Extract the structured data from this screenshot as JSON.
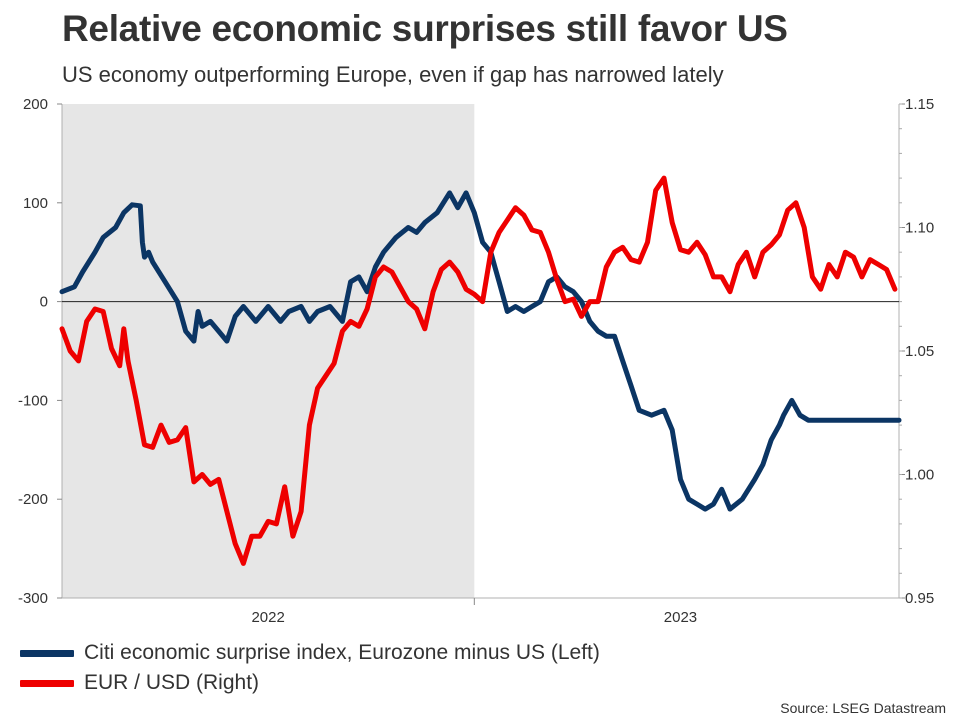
{
  "title": "Relative economic surprises still favor US",
  "subtitle": "US economy outperforming Europe, even if gap has narrowed lately",
  "source": "Source: LSEG Datastream",
  "chart_data": {
    "type": "line",
    "title": "Relative economic surprises still favor US",
    "subtitle": "US economy outperforming Europe, even if gap has narrowed lately",
    "x_periods": [
      {
        "label": "2022",
        "start": 0,
        "end": 1
      },
      {
        "label": "2023",
        "start": 1,
        "end": 2
      }
    ],
    "shaded_region": {
      "from": 0,
      "to": 1,
      "color": "#e6e6e6"
    },
    "x_range": [
      0,
      2.03
    ],
    "y_left": {
      "ticks": [
        "200",
        "100",
        "0",
        "-100",
        "-200",
        "-300"
      ],
      "ylim": [
        -300,
        200
      ]
    },
    "y_right": {
      "ticks": [
        "1.15",
        "1.10",
        "1.05",
        "1.00",
        "0.95"
      ],
      "ylim": [
        0.95,
        1.15
      ]
    },
    "zero_line": 0,
    "series": [
      {
        "name": "Citi economic surprise index, Eurozone minus US (Left)",
        "axis": "left",
        "color": "#0b3564",
        "x": [
          0.0,
          0.03,
          0.05,
          0.08,
          0.1,
          0.13,
          0.15,
          0.17,
          0.19,
          0.195,
          0.2,
          0.21,
          0.22,
          0.25,
          0.28,
          0.3,
          0.32,
          0.33,
          0.34,
          0.36,
          0.38,
          0.4,
          0.42,
          0.44,
          0.47,
          0.5,
          0.53,
          0.55,
          0.58,
          0.6,
          0.62,
          0.65,
          0.68,
          0.7,
          0.72,
          0.74,
          0.76,
          0.78,
          0.81,
          0.84,
          0.86,
          0.88,
          0.91,
          0.94,
          0.96,
          0.98,
          1.0,
          1.02,
          1.04,
          1.05,
          1.06,
          1.08,
          1.1,
          1.12,
          1.14,
          1.16,
          1.18,
          1.2,
          1.22,
          1.24,
          1.26,
          1.28,
          1.3,
          1.32,
          1.34,
          1.36,
          1.38,
          1.4,
          1.43,
          1.46,
          1.48,
          1.5,
          1.52,
          1.54,
          1.56,
          1.58,
          1.6,
          1.62,
          1.65,
          1.68,
          1.7,
          1.72,
          1.74,
          1.75,
          1.77,
          1.79,
          1.81,
          1.83,
          1.85,
          1.87,
          1.89,
          1.92,
          1.95,
          1.97,
          1.99,
          2.01,
          2.03
        ],
        "values": [
          10,
          15,
          30,
          50,
          65,
          75,
          90,
          98,
          97,
          60,
          45,
          50,
          40,
          20,
          0,
          -30,
          -40,
          -10,
          -25,
          -20,
          -30,
          -40,
          -15,
          -5,
          -20,
          -5,
          -20,
          -10,
          -5,
          -20,
          -10,
          -5,
          -20,
          20,
          25,
          10,
          35,
          50,
          65,
          75,
          70,
          80,
          90,
          110,
          95,
          110,
          90,
          60,
          50,
          35,
          20,
          -10,
          -5,
          -10,
          -5,
          0,
          20,
          25,
          15,
          10,
          0,
          -20,
          -30,
          -35,
          -35,
          -60,
          -85,
          -110,
          -115,
          -110,
          -130,
          -180,
          -200,
          -205,
          -210,
          -205,
          -190,
          -210,
          -200,
          -180,
          -165,
          -140,
          -125,
          -115,
          -100,
          -115,
          -120,
          -120,
          -120,
          -120,
          -120,
          -120,
          -120,
          -120,
          -120,
          -120,
          -120
        ],
        "note": "approximate values read from chart"
      },
      {
        "name": "EUR / USD (Right)",
        "axis": "right",
        "color": "#ee0000",
        "x": [
          0.0,
          0.02,
          0.04,
          0.06,
          0.08,
          0.1,
          0.12,
          0.14,
          0.15,
          0.16,
          0.18,
          0.2,
          0.22,
          0.24,
          0.26,
          0.28,
          0.3,
          0.32,
          0.34,
          0.36,
          0.38,
          0.4,
          0.42,
          0.44,
          0.46,
          0.48,
          0.5,
          0.52,
          0.54,
          0.56,
          0.58,
          0.6,
          0.62,
          0.64,
          0.66,
          0.68,
          0.7,
          0.72,
          0.74,
          0.76,
          0.78,
          0.8,
          0.82,
          0.84,
          0.86,
          0.88,
          0.9,
          0.92,
          0.94,
          0.96,
          0.98,
          1.0,
          1.02,
          1.04,
          1.06,
          1.08,
          1.1,
          1.12,
          1.14,
          1.16,
          1.18,
          1.2,
          1.22,
          1.24,
          1.26,
          1.28,
          1.3,
          1.32,
          1.34,
          1.36,
          1.38,
          1.4,
          1.42,
          1.44,
          1.46,
          1.48,
          1.5,
          1.52,
          1.54,
          1.56,
          1.58,
          1.6,
          1.62,
          1.64,
          1.66,
          1.68,
          1.7,
          1.72,
          1.74,
          1.76,
          1.78,
          1.8,
          1.82,
          1.84,
          1.86,
          1.88,
          1.9,
          1.92,
          1.94,
          1.96,
          1.98,
          2.0,
          2.02
        ],
        "values": [
          1.059,
          1.05,
          1.046,
          1.062,
          1.067,
          1.066,
          1.051,
          1.044,
          1.059,
          1.046,
          1.03,
          1.012,
          1.011,
          1.02,
          1.013,
          1.014,
          1.019,
          0.997,
          1.0,
          0.996,
          0.998,
          0.985,
          0.972,
          0.964,
          0.975,
          0.975,
          0.981,
          0.98,
          0.995,
          0.975,
          0.985,
          1.02,
          1.035,
          1.04,
          1.045,
          1.058,
          1.062,
          1.06,
          1.067,
          1.08,
          1.084,
          1.082,
          1.076,
          1.07,
          1.067,
          1.059,
          1.074,
          1.083,
          1.086,
          1.082,
          1.075,
          1.073,
          1.07,
          1.09,
          1.098,
          1.103,
          1.108,
          1.105,
          1.099,
          1.098,
          1.09,
          1.079,
          1.07,
          1.071,
          1.064,
          1.07,
          1.07,
          1.084,
          1.09,
          1.092,
          1.087,
          1.086,
          1.094,
          1.115,
          1.12,
          1.102,
          1.091,
          1.09,
          1.094,
          1.089,
          1.08,
          1.08,
          1.074,
          1.085,
          1.09,
          1.08,
          1.09,
          1.093,
          1.097,
          1.107,
          1.11,
          1.1,
          1.08,
          1.075,
          1.085,
          1.08,
          1.09,
          1.088,
          1.08,
          1.087,
          1.085,
          1.083,
          1.075
        ]
      }
    ]
  }
}
